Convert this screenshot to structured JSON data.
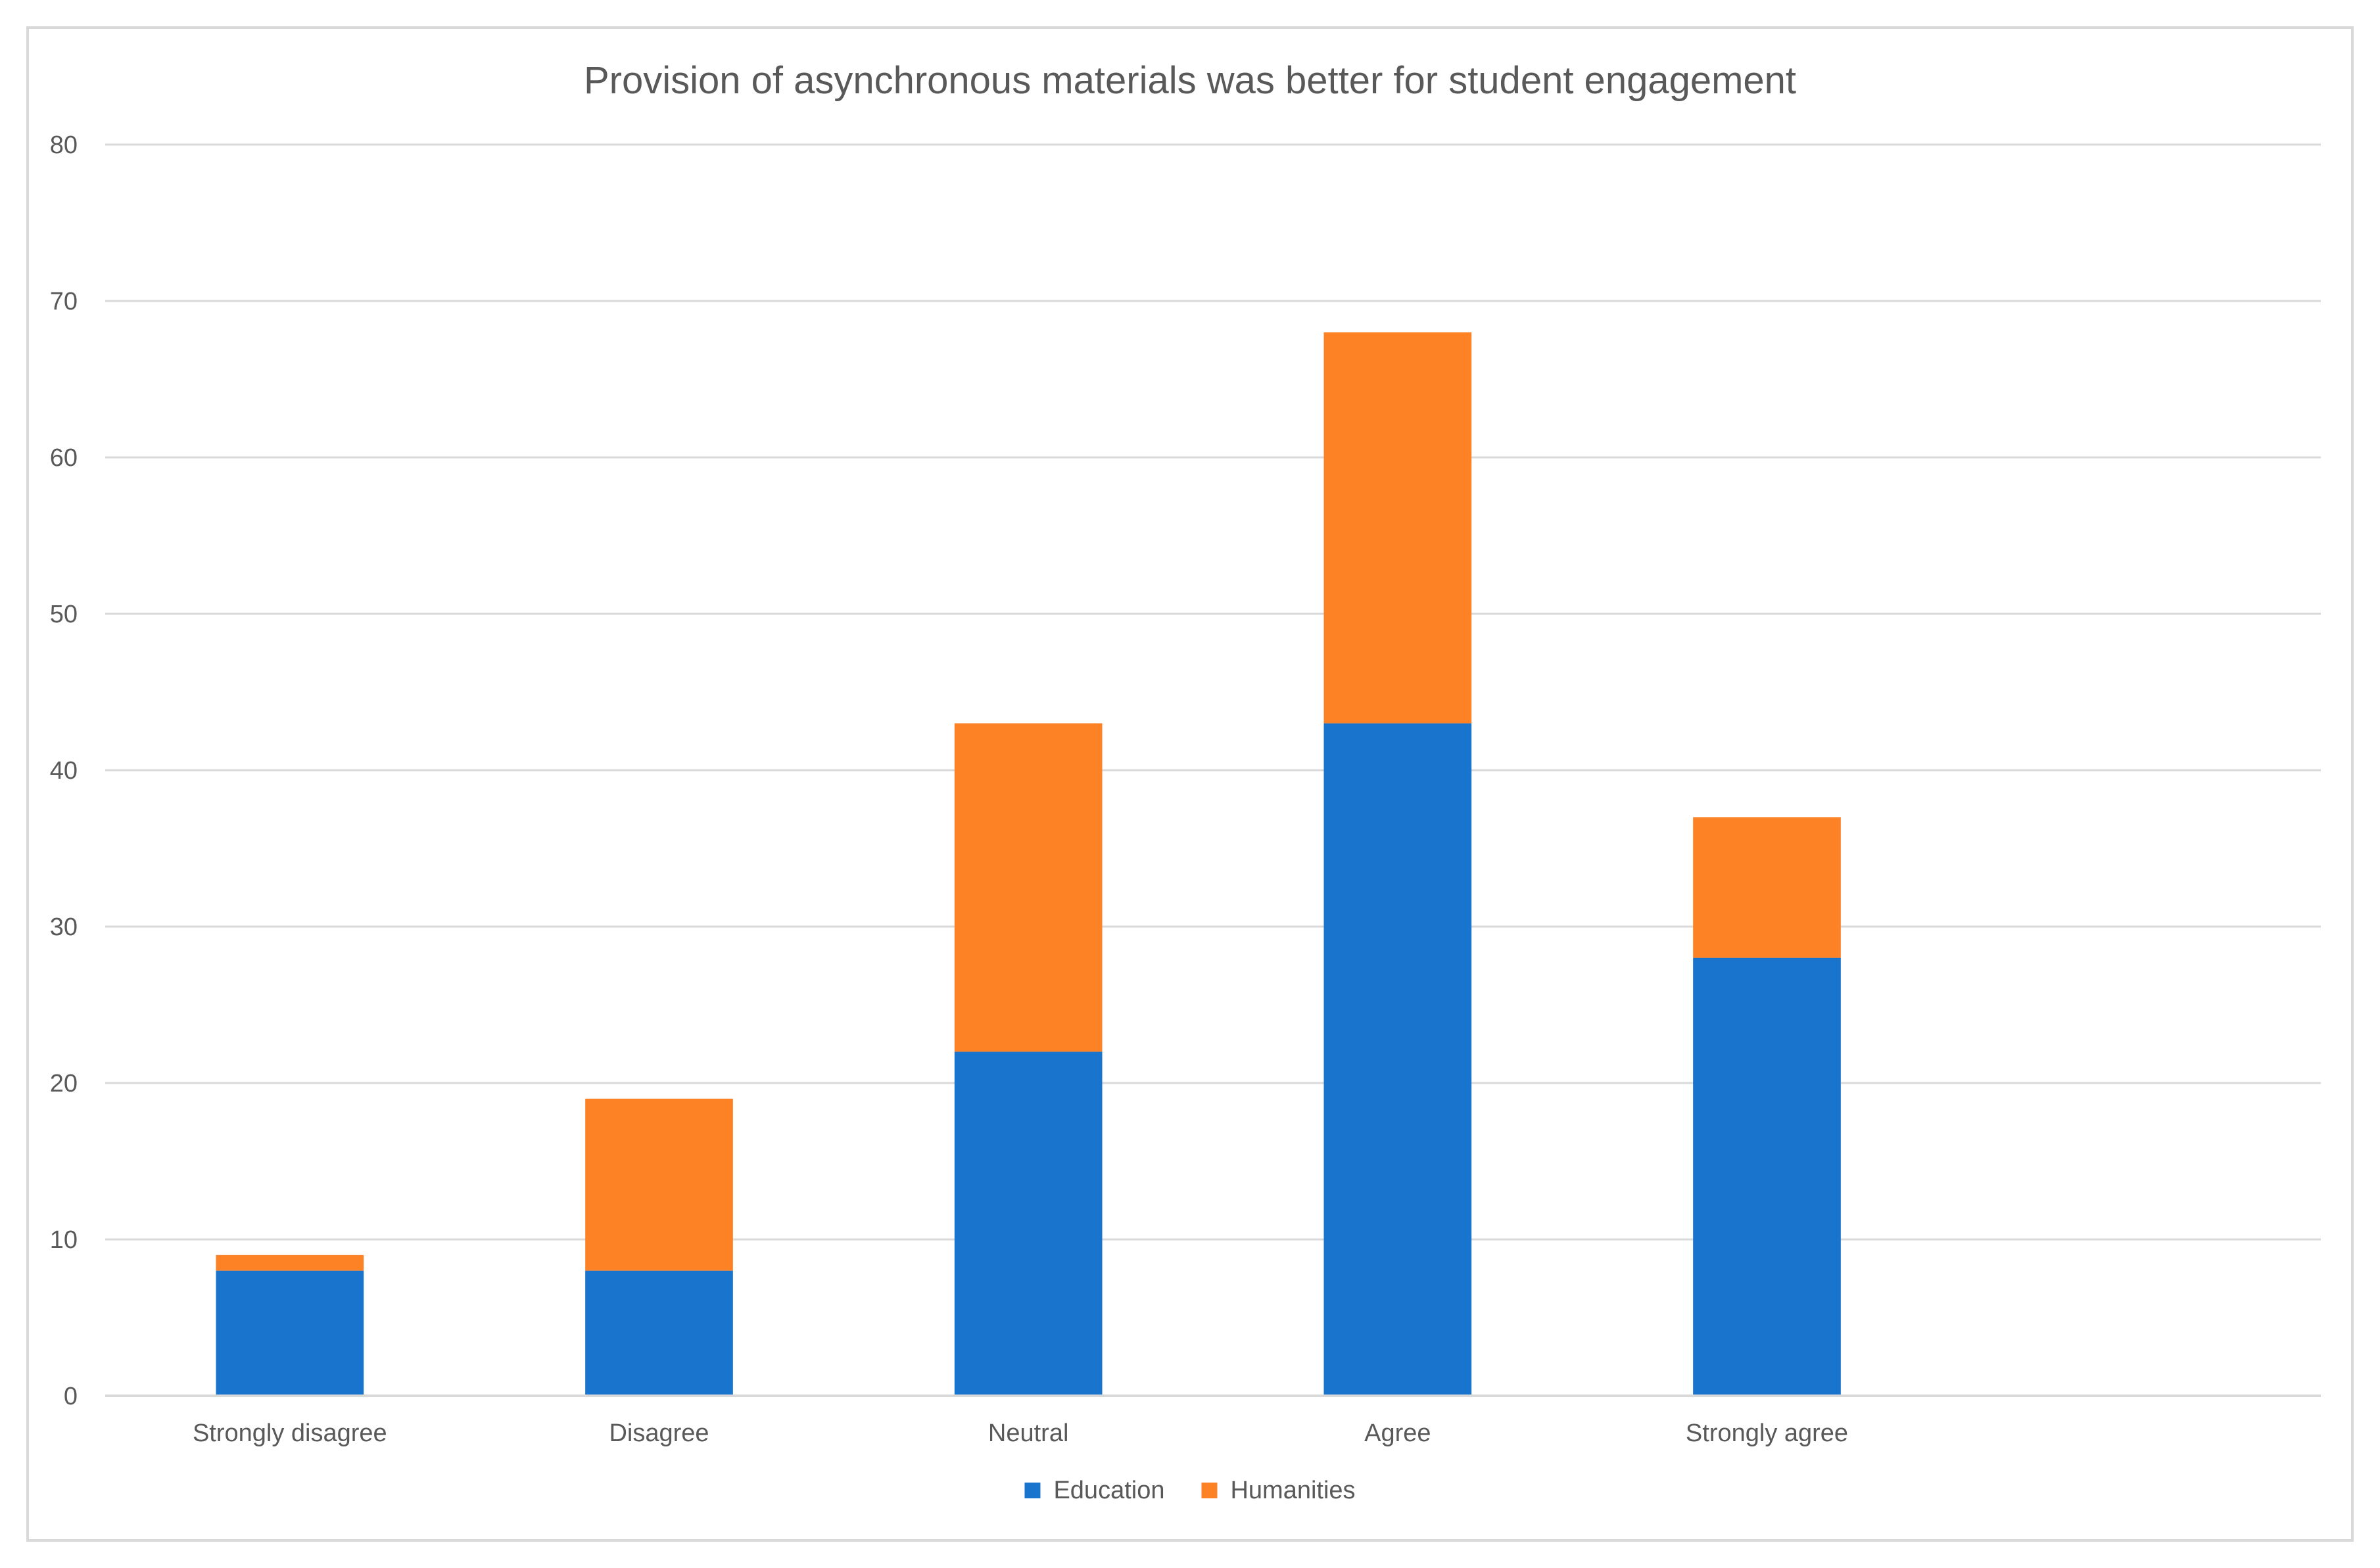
{
  "chart_data": {
    "type": "bar",
    "stacked": true,
    "title": "Provision of asynchronous materials was better for student engagement",
    "xlabel": "",
    "ylabel": "",
    "categories": [
      "Strongly disagree",
      "Disagree",
      "Neutral",
      "Agree",
      "Strongly agree"
    ],
    "series": [
      {
        "name": "Education",
        "color": "#1874cd",
        "values": [
          8,
          8,
          22,
          43,
          28
        ]
      },
      {
        "name": "Humanities",
        "color": "#fd8125",
        "values": [
          1,
          11,
          21,
          25,
          9
        ]
      }
    ],
    "ylim": [
      0,
      80
    ],
    "yticks": [
      0,
      10,
      20,
      30,
      40,
      50,
      60,
      70,
      80
    ],
    "grid": true,
    "legend": "bottom-center"
  }
}
